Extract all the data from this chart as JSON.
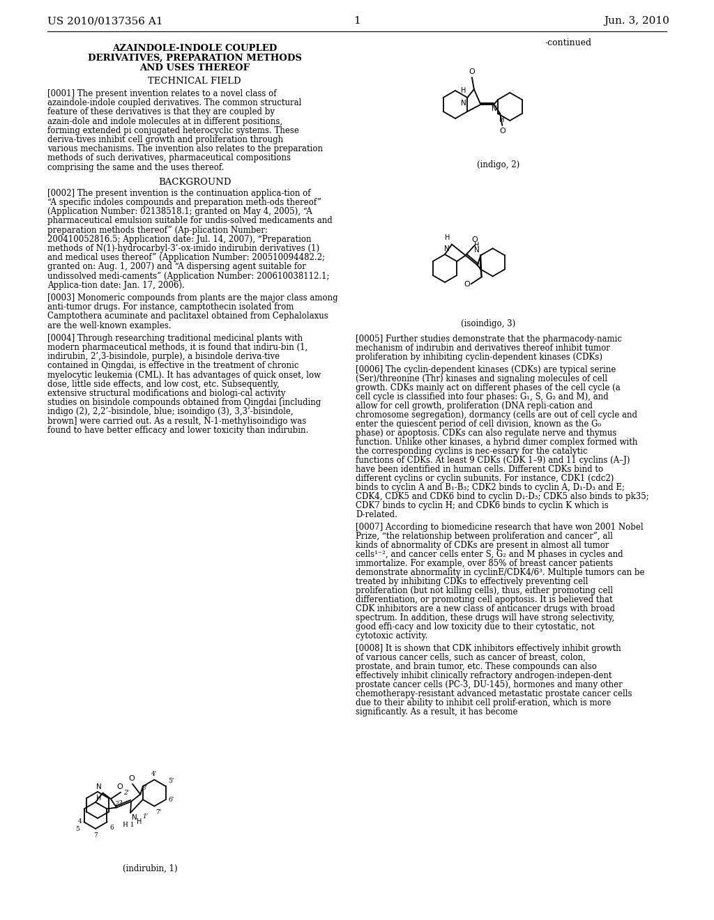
{
  "patent_number": "US 2010/0137356 A1",
  "date": "Jun. 3, 2010",
  "page_number": "1",
  "title_line1": "AZAINDOLE-INDOLE COUPLED",
  "title_line2": "DERIVATIVES, PREPARATION METHODS",
  "title_line3": "AND USES THEREOF",
  "section_technical": "TECHNICAL FIELD",
  "section_background": "BACKGROUND",
  "continued_label": "-continued",
  "indigo_label": "(indigo, 2)",
  "isoindigo_label": "(isoindigo, 3)",
  "indirubin_label": "(indirubin, 1)",
  "para0001": "[0001]   The present invention relates to a novel class of azaindole-indole coupled derivatives. The common structural feature of these derivatives is that they are coupled by azain-dole and indole molecules at in different positions, forming extended pi conjugated heterocyclic systems. These deriva-tives inhibit cell growth and proliferation through various mechanisms. The invention also relates to the preparation methods of such derivatives, pharmaceutical compositions comprising the same and the uses thereof.",
  "para0002": "[0002]   The present invention is the continuation applica-tion of “A specific indoles compounds and preparation meth-ods thereof” (Application Number: 02138518.1; granted on May 4, 2005), “A pharmaceutical emulsion suitable for undis-solved medicaments and preparation methods thereof” (Ap-plication Number: 200410052816.5; Application date: Jul. 14, 2007), “Preparation methods of N(1)-hydrocarbyl-3’-ox-imido indirubin derivatives (1) and medical uses thereof” (Application Number: 200510094482.2; granted on: Aug. 1, 2007) and “A dispersing agent suitable for undissolved medi-caments” (Application Number: 200610038112.1; Applica-tion date: Jan. 17, 2006).",
  "para0003": "[0003]   Monomeric compounds from plants are the major class among anti-tumor drugs. For instance, camptothecin isolated from Camptothera acuminate and paclitaxel obtained from Cephalolaxus are the well-known examples.",
  "para0004": "[0004]   Through researching traditional medicinal plants with modern pharmaceutical methods, it is found that indiru-bin (1, indirubin, 2’,3-bisindole, purple), a bisindole deriva-tive contained in Qingdai, is effective in the treatment of chronic myelocytic leukemia (CML). It has advantages of quick onset, low dose, little side effects, and low cost, etc. Subsequently, extensive structural modifications and biologi-cal activity studies on bisindole compounds obtained from Qingdai [including indigo (2), 2,2’-bisindole, blue; isoindigo (3), 3,3’-bisindole, brown] were carried out. As a result, N-1-methylisoindigo was found to have better efficacy and lower toxicity than indirubin.",
  "para0005": "[0005]   Further studies demonstrate that the pharmacody-namic mechanism of indirubin and derivatives thereof inhibit tumor proliferation by inhibiting cyclin-dependent kinases (CDKs)",
  "para0006": "[0006]   The cyclin-dependent kinases (CDKs) are typical serine (Ser)/threonine (Thr) kinases and signaling molecules of cell growth. CDKs mainly act on different phases of the cell cycle (a cell cycle is classified into four phases: G₁, S, G₂ and M), and allow for cell growth, proliferation (DNA repli-cation and chromosome segregation), dormancy (cells are out of cell cycle and enter the quiescent period of cell division, known as the G₀ phase) or apoptosis. CDKs can also regulate nerve and thymus function. Unlike other kinases, a hybrid dimer complex formed with the corresponding cyclins is nec-essary for the catalytic functions of CDKs. At least 9 CDKs (CDK 1–9) and 11 cyclins (A–J) have been identified in human cells. Different CDKs bind to different cyclins or cyclin subunits. For instance, CDK1 (cdc2) binds to cyclin A and B₁-B₃; CDK2 binds to cyclin A, D₁-D₃ and E; CDK4, CDK5 and CDK6 bind to cyclin D₁-D₃; CDK5 also binds to pk35; CDK7 binds to cyclin H; and CDK6 binds to cyclin K which is D-related.",
  "para0007": "[0007]   According to biomedicine research that have won 2001 Nobel Prize, “the relationship between proliferation and cancer”, all kinds of abnormality of CDKs are present in almost all tumor cells¹⁻², and cancer cells enter S, G₂ and M phases in cycles and immortalize. For example, over 85% of breast cancer patients demonstrate abnormality in cyclinE/CDK4/6³. Multiple tumors can be treated by inhibiting CDKs to effectively preventing cell proliferation (but not killing cells), thus, either promoting cell differentiation, or promoting cell apoptosis. It is believed that CDK inhibitors are a new class of anticancer drugs with broad spectrum. In addition, these drugs will have strong selectivity, good effi-cacy and low toxicity due to their cytostatic, not cytotoxic activity.",
  "para0008": "[0008]   It is shown that CDK inhibitors effectively inhibit growth of various cancer cells, such as cancer of breast, colon, prostate, and brain tumor, etc. These compounds can also effectively inhibit clinically refractory androgen-indepen-dent prostate cancer cells (PC-3, DU-145), hormones and many other chemotherapy-resistant advanced metastatic prostate cancer cells due to their ability to inhibit cell prolif-eration, which is more significantly. As a result, it has become"
}
